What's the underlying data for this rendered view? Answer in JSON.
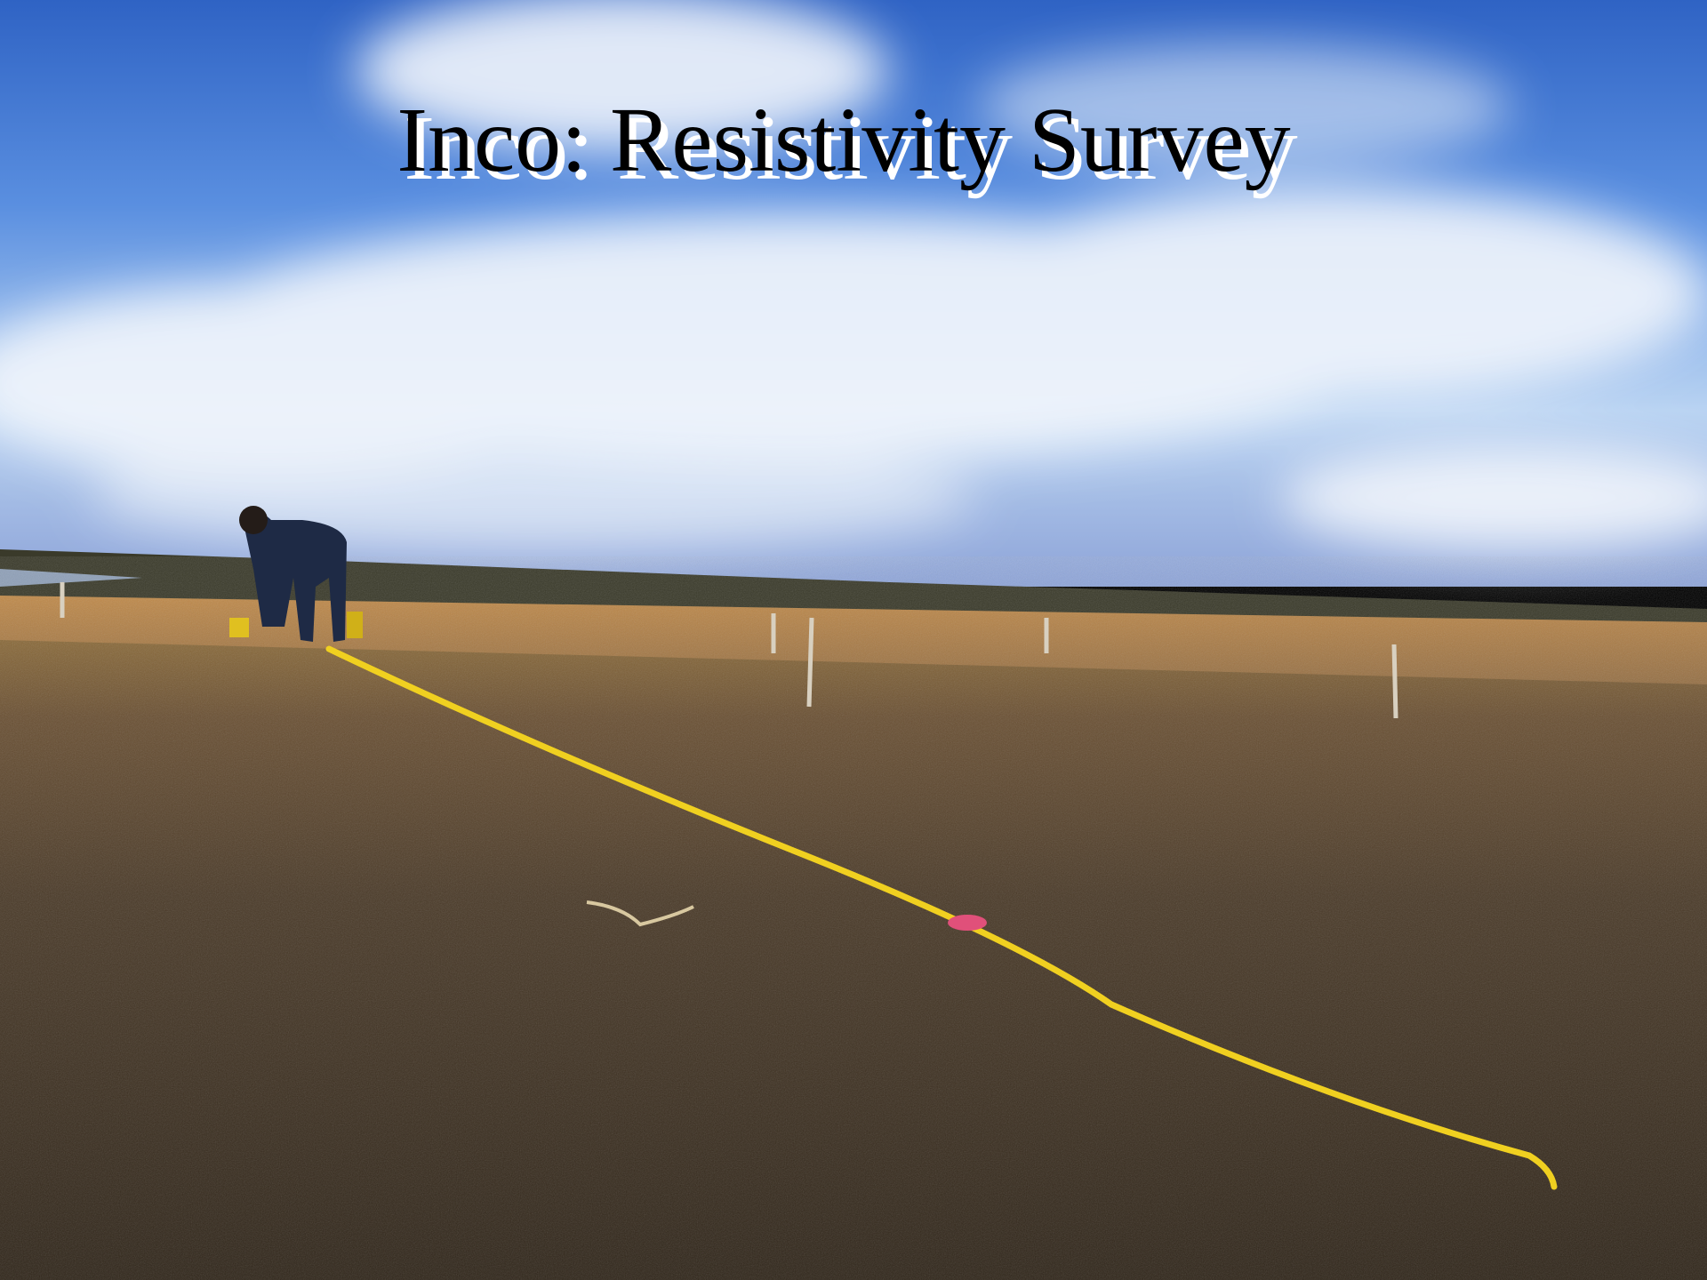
{
  "header": {
    "title": "Inco: Resistivity Survey"
  }
}
